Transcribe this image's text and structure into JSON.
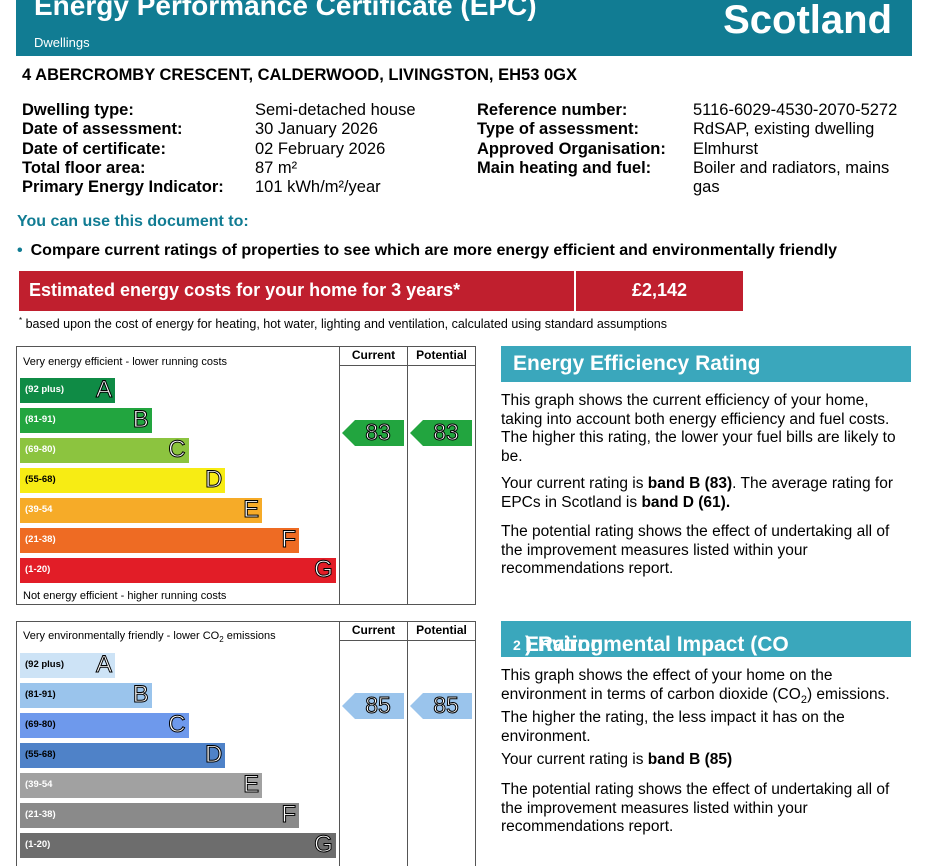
{
  "header": {
    "title": "Energy Performance Certificate (EPC)",
    "subtitle": "Dwellings",
    "country": "Scotland"
  },
  "address": "4 ABERCROMBY CRESCENT, CALDERWOOD, LIVINGSTON, EH53 0GX",
  "details_left": [
    {
      "label": "Dwelling type:",
      "value": "Semi-detached house"
    },
    {
      "label": "Date of assessment:",
      "value": "30 January 2026"
    },
    {
      "label": "Date of certificate:",
      "value": "02 February 2026"
    },
    {
      "label": "Total floor area:",
      "value": "87 m²"
    },
    {
      "label": "Primary Energy Indicator:",
      "value": "101 kWh/m²/year"
    }
  ],
  "details_right": [
    {
      "label": "Reference number:",
      "value": "5116-6029-4530-2070-5272"
    },
    {
      "label": "Type of assessment:",
      "value": "RdSAP, existing dwelling"
    },
    {
      "label": "Approved Organisation:",
      "value": "Elmhurst"
    },
    {
      "label": "Main heating and fuel:",
      "value": "Boiler and radiators, mains gas"
    }
  ],
  "use_title": "You can use this document to:",
  "bullet": "Compare current ratings of properties to see which are more energy efficient and environmentally friendly",
  "cost": {
    "label": "Estimated energy costs for your home for 3 years*",
    "value": "£2,142"
  },
  "footnote_mark": "*",
  "footnote": "based upon the cost of energy for heating, hot water, lighting and ventilation, calculated using standard assumptions",
  "energy_chart": {
    "top_text": "Very energy efficient - lower running costs",
    "bottom_text": "Not energy efficient - higher running costs",
    "col_current": "Current",
    "col_potential": "Potential",
    "bands": [
      {
        "range": "(92 plus)",
        "letter": "A",
        "color": "#0f8b45"
      },
      {
        "range": "(81-91)",
        "letter": "B",
        "color": "#22a53f"
      },
      {
        "range": "(69-80)",
        "letter": "C",
        "color": "#8cc43f"
      },
      {
        "range": "(55-68)",
        "letter": "D",
        "color": "#f7ec14"
      },
      {
        "range": "(39-54",
        "letter": "E",
        "color": "#f6ab28"
      },
      {
        "range": "(21-38)",
        "letter": "F",
        "color": "#ee6b23"
      },
      {
        "range": "(1-20)",
        "letter": "G",
        "color": "#e21d27"
      }
    ],
    "current": "83",
    "potential": "83",
    "arrow_color": "#22a53f"
  },
  "env_chart": {
    "top_text": "Very environmentally friendly - lower CO",
    "top_text_sub": "2",
    "top_text_end": " emissions",
    "col_current": "Current",
    "col_potential": "Potential",
    "bands": [
      {
        "range": "(92 plus)",
        "letter": "A",
        "color": "#cde3f6"
      },
      {
        "range": "(81-91)",
        "letter": "B",
        "color": "#9ac4ec"
      },
      {
        "range": "(69-80)",
        "letter": "C",
        "color": "#6e99ec"
      },
      {
        "range": "(55-68)",
        "letter": "D",
        "color": "#4f82c8"
      },
      {
        "range": "(39-54",
        "letter": "E",
        "color": "#a1a1a1"
      },
      {
        "range": "(21-38)",
        "letter": "F",
        "color": "#8a8a8a"
      },
      {
        "range": "(1-20)",
        "letter": "G",
        "color": "#6d6d6d"
      }
    ],
    "current": "85",
    "potential": "85",
    "arrow_color": "#9ac4ec"
  },
  "eer": {
    "title": "Energy Efficiency Rating",
    "p1": "This graph shows the current efficiency of your home, taking into account both energy efficiency and fuel costs. The higher this rating, the lower your fuel bills are likely to be.",
    "p2_a": "Your current rating is ",
    "p2_b": "band B (83)",
    "p2_c": ". The average rating for EPCs in Scotland is ",
    "p2_d": "band D (61).",
    "p3": "The potential rating shows the effect of undertaking all of the improvement measures listed within your recommendations report."
  },
  "eir": {
    "title_a": "Environmental Impact (CO",
    "title_sub": "2",
    "title_b": ") Rating",
    "p1_a": "This graph shows the effect of your home on the environment in terms of carbon dioxide (CO",
    "p1_sub": "2",
    "p1_b": ") emissions. The higher the rating, the less impact it has on the environment.",
    "p2_a": "Your current rating is ",
    "p2_b": "band B (85)",
    "p3": "The potential rating shows the effect of undertaking all of the improvement measures listed within your recommendations report."
  }
}
